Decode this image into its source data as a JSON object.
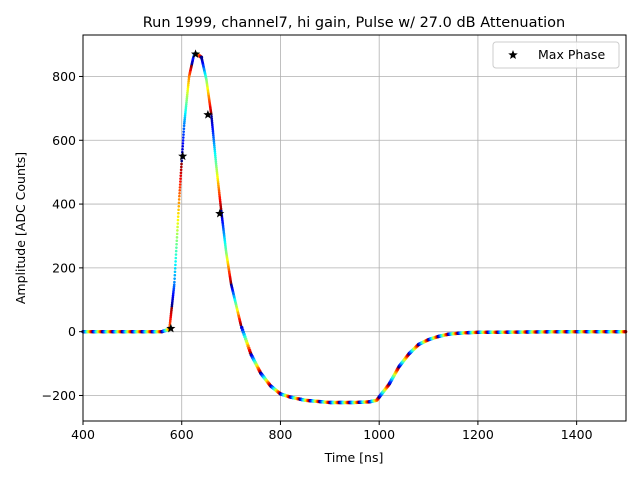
{
  "chart_data": {
    "type": "scatter",
    "title": "Run 1999, channel7, hi gain, Pulse w/ 27.0 dB Attenuation",
    "xlabel": "Time [ns]",
    "ylabel": "Amplitude [ADC Counts]",
    "xlim": [
      400,
      1500
    ],
    "ylim": [
      -280,
      930
    ],
    "xticks": [
      400,
      600,
      800,
      1000,
      1200,
      1400
    ],
    "yticks": [
      -200,
      0,
      200,
      400,
      600,
      800
    ],
    "grid": true,
    "legend_position": "top-right",
    "series": [
      {
        "name": "",
        "kind": "scatter-waveform",
        "colormap": "jet",
        "x": [
          400,
          500,
          560,
          575,
          585,
          595,
          605,
          615,
          625,
          630,
          640,
          650,
          660,
          670,
          680,
          690,
          700,
          720,
          740,
          760,
          780,
          800,
          820,
          850,
          900,
          950,
          980,
          995,
          1000,
          1020,
          1040,
          1060,
          1080,
          1100,
          1120,
          1140,
          1160,
          1180,
          1200,
          1300,
          1400,
          1500
        ],
        "y": [
          0,
          0,
          0,
          8,
          150,
          420,
          650,
          800,
          870,
          872,
          860,
          790,
          680,
          520,
          380,
          250,
          150,
          20,
          -70,
          -130,
          -170,
          -195,
          -205,
          -215,
          -222,
          -222,
          -220,
          -215,
          -205,
          -165,
          -110,
          -70,
          -40,
          -25,
          -15,
          -8,
          -5,
          -3,
          -2,
          -1,
          0,
          0
        ]
      },
      {
        "name": "Max Phase",
        "kind": "marker",
        "marker": "star",
        "color": "#000000",
        "x": [
          578,
          602,
          628,
          653,
          677
        ],
        "y": [
          10,
          550,
          870,
          680,
          370
        ]
      }
    ]
  }
}
